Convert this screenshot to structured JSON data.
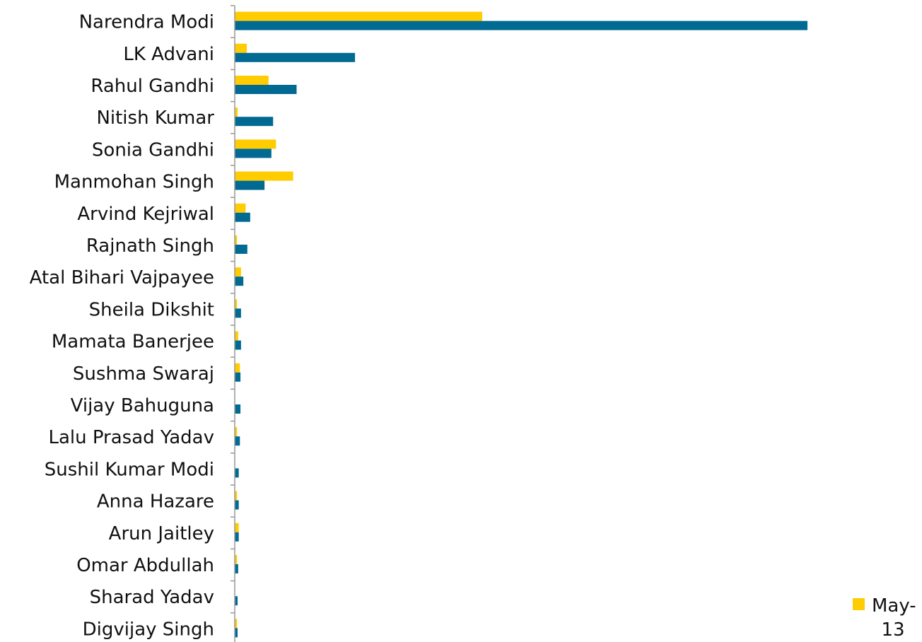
{
  "colors": {
    "series_a": "#FFCC00",
    "series_b": "#006A93",
    "axis": "#999999"
  },
  "legend": {
    "label": "May-13",
    "color_key": "series_a"
  },
  "chart_data": {
    "type": "bar",
    "orientation": "horizontal",
    "categories": [
      "Narendra Modi",
      "LK Advani",
      "Rahul Gandhi",
      "Nitish Kumar",
      "Sonia Gandhi",
      "Manmohan Singh",
      "Arvind Kejriwal",
      "Rajnath Singh",
      "Atal Bihari Vajpayee",
      "Sheila Dikshit",
      "Mamata Banerjee",
      "Sushma Swaraj",
      "Vijay Bahuguna",
      "Lalu Prasad Yadav",
      "Sushil Kumar Modi",
      "Anna Hazare",
      "Arun Jaitley",
      "Omar Abdullah",
      "Sharad Yadav",
      "Digvijay Singh"
    ],
    "series": [
      {
        "name": "May-13",
        "color": "#FFCC00",
        "values": [
          43.2,
          2.1,
          5.9,
          0.5,
          7.2,
          10.2,
          1.9,
          0.4,
          1.1,
          0.4,
          0.6,
          0.9,
          0,
          0.4,
          0,
          0.4,
          0.7,
          0.4,
          0,
          0.4
        ]
      },
      {
        "color": "#006A93",
        "values": [
          100,
          21,
          10.8,
          6.7,
          6.4,
          5.2,
          2.7,
          2.2,
          1.5,
          1.1,
          1.1,
          1.0,
          1.0,
          0.9,
          0.7,
          0.7,
          0.7,
          0.6,
          0.5,
          0.5
        ]
      }
    ],
    "xlim": [
      0,
      120
    ],
    "legend_position": "bottom-right",
    "grid": false
  }
}
